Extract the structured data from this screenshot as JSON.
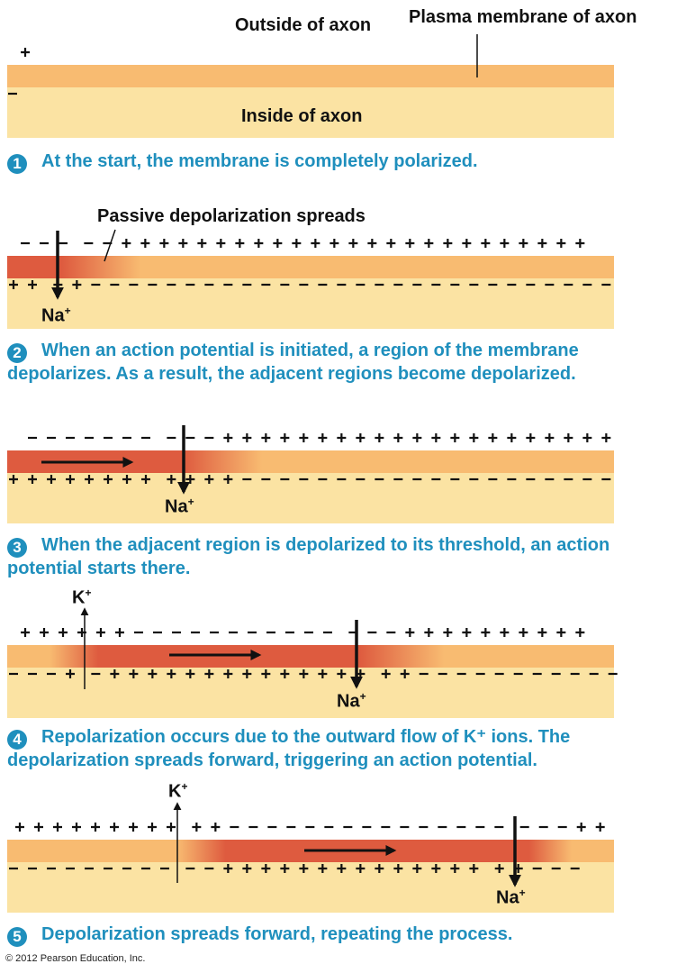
{
  "colors": {
    "inside": "#fbe3a3",
    "membrane": "#f8bb71",
    "depolarized": "#de5b3f",
    "step_text": "#1f8fbd",
    "sign": "#111111"
  },
  "labels": {
    "outside": "Outside of axon",
    "plasma_membrane": "Plasma membrane of axon",
    "inside": "Inside of axon",
    "passive": "Passive depolarization spreads",
    "na": "Na",
    "k": "K",
    "plus": "+"
  },
  "steps": [
    {
      "num": "1",
      "text": "At the start, the membrane is completely polarized."
    },
    {
      "num": "2",
      "text": "When an action potential is initiated, a region of the membrane depolarizes. As a result, the adjacent regions become depolarized."
    },
    {
      "num": "3",
      "text": "When the adjacent region is depolarized to its threshold, an action potential starts there."
    },
    {
      "num": "4",
      "text": "Repolarization occurs due to the outward flow of K⁺ ions. The depolarization spreads forward, triggering an action potential."
    },
    {
      "num": "5",
      "text": "Depolarization spreads forward, repeating the process."
    }
  ],
  "copyright": "© 2012 Pearson Education, Inc."
}
